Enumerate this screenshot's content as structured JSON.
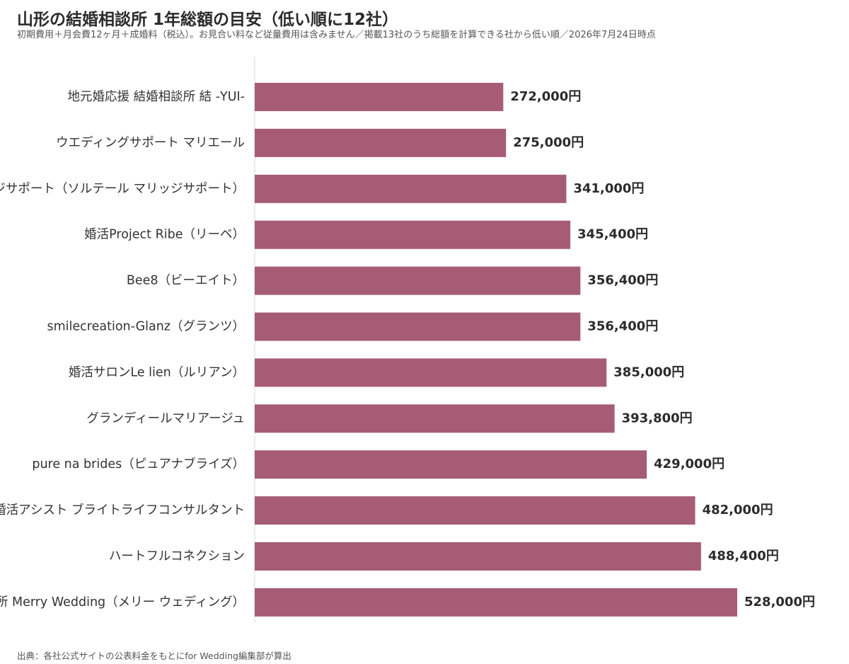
{
  "title": "山形の結婚相談所 1年総額の目安（低い順に12社）",
  "subtitle": "初期費用＋月会費12ヶ月＋成婚料（税込）。お見合い料など従量費用は含みません／掲載13社のうち総額を計算できる社から低い順／2026年7月24日時点",
  "source": "出典：各社公式サイトの公表料金をもとにfor Wedding編集部が算出",
  "colors": {
    "bar": "#a65c74",
    "axis": "#d9d9d9",
    "text": "#333333"
  },
  "chart_data": {
    "type": "bar",
    "orientation": "horizontal",
    "value_suffix": "円",
    "categories": [
      "地元婚応援 結婚相談所 結 -YUI-",
      "ウエディングサポート マリエール",
      "マリッジサポート（ソルテール マリッジサポート）",
      "婚活Project Ribe（リーベ）",
      "Bee8（ビーエイト）",
      "smilecreation-Glanz（グランツ）",
      "婚活サロンLe lien（ルリアン）",
      "グランディールマリアージュ",
      "pure na brides（ピュアナブライズ）",
      "婚活アシスト ブライトライフコンサルタント",
      "ハートフルコネクション",
      "結婚相談所 Merry Wedding（メリー ウェディング）"
    ],
    "values": [
      272000,
      275000,
      341000,
      345400,
      356400,
      356400,
      385000,
      393800,
      429000,
      482000,
      488400,
      528000
    ],
    "labels": [
      "272,000円",
      "275,000円",
      "341,000円",
      "345,400円",
      "356,400円",
      "356,400円",
      "385,000円",
      "393,800円",
      "429,000円",
      "482,000円",
      "488,400円",
      "528,000円"
    ],
    "xlim": [
      0,
      528000
    ],
    "grid": false,
    "legend": "none"
  }
}
